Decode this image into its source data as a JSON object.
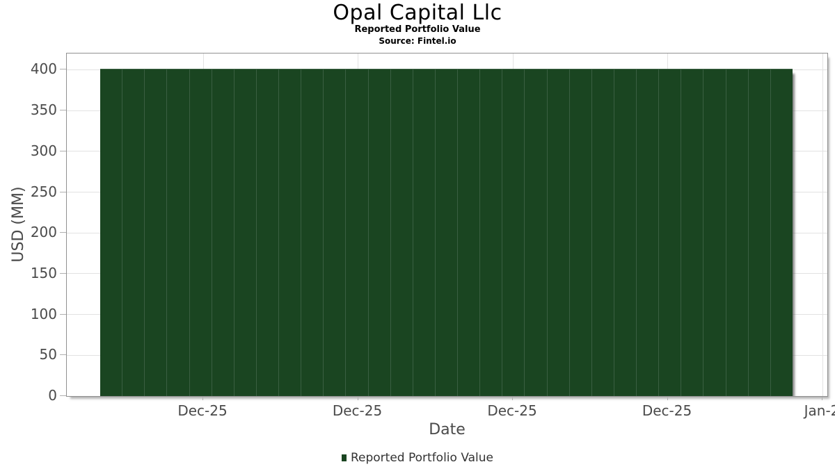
{
  "title": "Opal Capital Llc",
  "subtitle": "Reported Portfolio Value",
  "source_line": "Source: Fintel.io",
  "x_axis_title": "Date",
  "y_axis_title": "USD (MM)",
  "legend": {
    "label": "Reported Portfolio Value",
    "swatch_color": "#1a4521"
  },
  "colors": {
    "bar": "#1a4521",
    "bar_separator": "#3a5f42",
    "bar_shadow": "#8f8f8f",
    "gridline": "#e2e2e2",
    "frame_border": "#909090",
    "tick_mark": "#b0b0b0",
    "tick_text": "#4a4a4a",
    "title_text": "#000000",
    "legend_text": "#333333"
  },
  "chart_data": {
    "type": "bar",
    "title": "Opal Capital Llc",
    "subtitle": "Reported Portfolio Value",
    "source": "Source: Fintel.io",
    "xlabel": "Date",
    "ylabel": "USD (MM)",
    "ylim": [
      0,
      420
    ],
    "yticks": [
      0,
      50,
      100,
      150,
      200,
      250,
      300,
      350,
      400
    ],
    "ytick_labels": [
      "0",
      "50",
      "100",
      "150",
      "200",
      "250",
      "300",
      "350",
      "400"
    ],
    "xtick_labels": [
      "Dec-25",
      "Dec-25",
      "Dec-25",
      "Dec-25",
      "Jan-2"
    ],
    "grid": true,
    "legend_position": "bottom",
    "series": [
      {
        "name": "Reported Portfolio Value",
        "color": "#1a4521",
        "values": [
          400,
          400,
          400,
          400,
          400,
          400,
          400,
          400,
          400,
          400,
          400,
          400,
          400,
          400,
          400,
          400,
          400,
          400,
          400,
          400,
          400,
          400,
          400,
          400,
          400,
          400,
          400,
          400,
          400,
          400,
          400
        ]
      }
    ]
  }
}
